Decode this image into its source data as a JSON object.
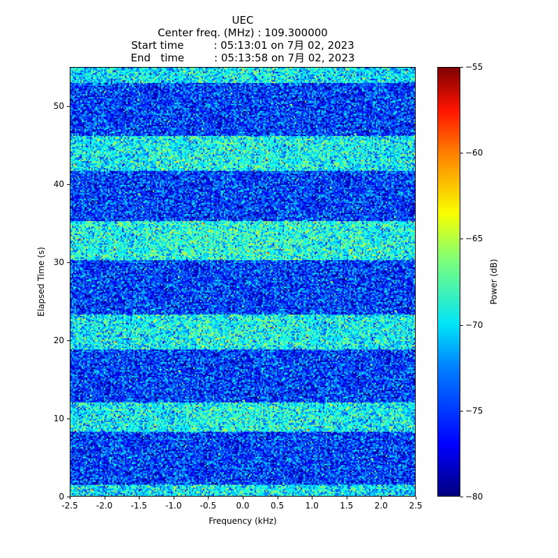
{
  "chart_data": {
    "type": "heatmap",
    "title_lines": [
      "UEC",
      "Center freq. (MHz) : 109.300000",
      "Start time         : 05:13:01 on 7月 02, 2023",
      "End   time         : 05:13:58 on 7月 02, 2023"
    ],
    "xlabel": "Frequency (kHz)",
    "ylabel": "Elapsed Time (s)",
    "colorbar_label": "Power (dB)",
    "xlim": [
      -2.5,
      2.5
    ],
    "ylim": [
      0,
      55
    ],
    "clim": [
      -80,
      -55
    ],
    "colormap": "jet",
    "x_ticks": [
      {
        "value": -2.5,
        "label": "-2.5"
      },
      {
        "value": -2.0,
        "label": "-2.0"
      },
      {
        "value": -1.5,
        "label": "-1.5"
      },
      {
        "value": -1.0,
        "label": "-1.0"
      },
      {
        "value": -0.5,
        "label": "-0.5"
      },
      {
        "value": 0.0,
        "label": "0.0"
      },
      {
        "value": 0.5,
        "label": "0.5"
      },
      {
        "value": 1.0,
        "label": "1.0"
      },
      {
        "value": 1.5,
        "label": "1.5"
      },
      {
        "value": 2.0,
        "label": "2.0"
      },
      {
        "value": 2.5,
        "label": "2.5"
      }
    ],
    "y_ticks": [
      {
        "value": 0,
        "label": "0"
      },
      {
        "value": 10,
        "label": "10"
      },
      {
        "value": 20,
        "label": "20"
      },
      {
        "value": 30,
        "label": "30"
      },
      {
        "value": 40,
        "label": "40"
      },
      {
        "value": 50,
        "label": "50"
      }
    ],
    "colorbar_ticks": [
      {
        "value": -55,
        "label": "−55"
      },
      {
        "value": -60,
        "label": "−60"
      },
      {
        "value": -65,
        "label": "−65"
      },
      {
        "value": -70,
        "label": "−70"
      },
      {
        "value": -75,
        "label": "−75"
      },
      {
        "value": -80,
        "label": "−80"
      }
    ],
    "bands": [
      {
        "start_s": 0.0,
        "end_s": 1.5,
        "mean_db": -71.5
      },
      {
        "start_s": 1.5,
        "end_s": 8.3,
        "mean_db": -75.5
      },
      {
        "start_s": 8.3,
        "end_s": 12.0,
        "mean_db": -71.0
      },
      {
        "start_s": 12.0,
        "end_s": 18.8,
        "mean_db": -75.5
      },
      {
        "start_s": 18.8,
        "end_s": 23.3,
        "mean_db": -71.0
      },
      {
        "start_s": 23.3,
        "end_s": 30.3,
        "mean_db": -75.5
      },
      {
        "start_s": 30.3,
        "end_s": 35.3,
        "mean_db": -70.5
      },
      {
        "start_s": 35.3,
        "end_s": 41.8,
        "mean_db": -75.5
      },
      {
        "start_s": 41.8,
        "end_s": 46.3,
        "mean_db": -71.0
      },
      {
        "start_s": 46.3,
        "end_s": 53.0,
        "mean_db": -75.5
      },
      {
        "start_s": 53.0,
        "end_s": 55.0,
        "mean_db": -71.5
      }
    ],
    "noise_std_db": 2.6
  }
}
